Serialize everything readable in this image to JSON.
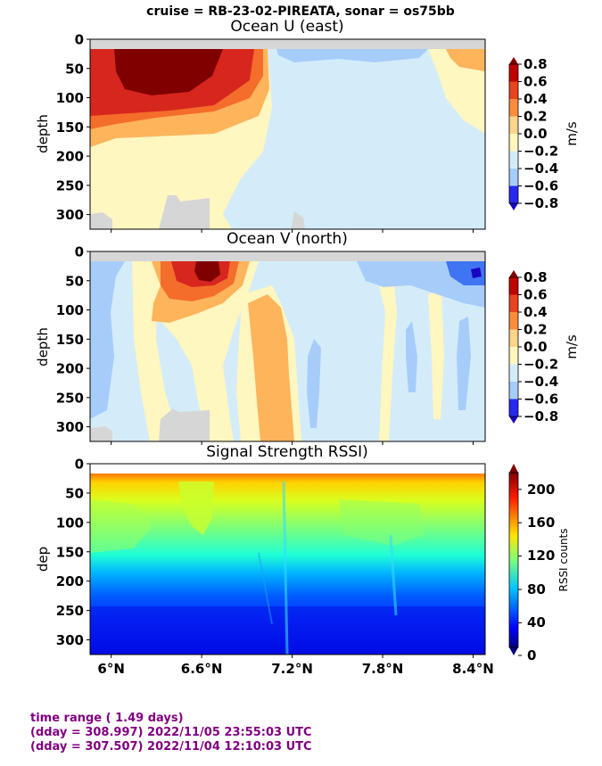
{
  "suptitle": "cruise = RB-23-02-PIREATA,  sonar = os75bb",
  "chart_data": [
    {
      "type": "heatmap",
      "title": "Ocean U (east)",
      "ylabel": "depth",
      "ylim": [
        325,
        0
      ],
      "yticks": [
        0,
        50,
        100,
        150,
        200,
        250,
        300
      ],
      "xlim": [
        5.86,
        8.48
      ],
      "xticks": [
        6.0,
        6.6,
        7.2,
        7.8,
        8.4
      ],
      "xticklabels": [
        "",
        "",
        "",
        "",
        ""
      ],
      "colorbar": {
        "label": "m/s",
        "ticks": [
          "0.8",
          "0.6",
          "0.4",
          "0.2",
          "0.0",
          "−0.2",
          "−0.4",
          "−0.6",
          "−0.8"
        ],
        "range": [
          -0.8,
          0.8
        ],
        "colormap": "RdYlBu_r contoured"
      },
      "features": [
        {
          "desc": "strong eastward core",
          "value": 0.8,
          "lat": [
            6.0,
            6.7
          ],
          "depth": [
            20,
            100
          ]
        },
        {
          "desc": "eastward jet",
          "value": 0.6,
          "lat": [
            5.86,
            6.75
          ],
          "depth": [
            20,
            135
          ]
        },
        {
          "desc": "weak westward",
          "value": -0.1,
          "lat": [
            7.0,
            8.48
          ],
          "depth": [
            20,
            325
          ]
        }
      ]
    },
    {
      "type": "heatmap",
      "title": "Ocean V (north)",
      "ylabel": "depth",
      "ylim": [
        325,
        0
      ],
      "yticks": [
        0,
        50,
        100,
        150,
        200,
        250,
        300
      ],
      "xlim": [
        5.86,
        8.48
      ],
      "xticks": [
        6.0,
        6.6,
        7.2,
        7.8,
        8.4
      ],
      "xticklabels": [
        "",
        "",
        "",
        "",
        ""
      ],
      "colorbar": {
        "label": "m/s",
        "ticks": [
          "0.8",
          "0.6",
          "0.4",
          "0.2",
          "0.0",
          "−0.2",
          "−0.4",
          "−0.6",
          "−0.8"
        ],
        "range": [
          -0.8,
          0.8
        ],
        "colormap": "RdYlBu_r contoured"
      },
      "features": [
        {
          "desc": "northward core",
          "value": 0.8,
          "lat": [
            6.5,
            6.7
          ],
          "depth": [
            20,
            50
          ]
        },
        {
          "desc": "northward band",
          "value": 0.2,
          "lat": [
            7.0,
            7.3
          ],
          "depth": [
            60,
            300
          ]
        },
        {
          "desc": "southward core",
          "value": -0.6,
          "lat": [
            8.3,
            8.48
          ],
          "depth": [
            20,
            50
          ]
        }
      ]
    },
    {
      "type": "heatmap",
      "title": "Signal Strength RSSI)",
      "ylabel": "dep",
      "ylim": [
        325,
        0
      ],
      "yticks": [
        0,
        50,
        100,
        150,
        200,
        250,
        300
      ],
      "xlim": [
        5.86,
        8.48
      ],
      "xticks": [
        6.0,
        6.6,
        7.2,
        7.8,
        8.4
      ],
      "xticklabels": [
        "6°N",
        "6.6°N",
        "7.2°N",
        "7.8°N",
        "8.4°N"
      ],
      "colorbar": {
        "label": "RSSI counts",
        "ticks": [
          "200",
          "160",
          "120",
          "80",
          "40",
          "0"
        ],
        "range": [
          0,
          220
        ],
        "colormap": "jet"
      },
      "features": [
        {
          "desc": "high near surface",
          "value": 190,
          "depth": [
            20,
            40
          ]
        },
        {
          "desc": "decreasing with depth",
          "value": 40,
          "depth": [
            250,
            325
          ]
        }
      ]
    }
  ],
  "footer": {
    "line1": "time range ( 1.49 days)",
    "line2": "(dday = 308.997) 2022/11/05 23:55:03 UTC",
    "line3": "(dday = 307.507) 2022/11/04 12:10:03 UTC"
  }
}
